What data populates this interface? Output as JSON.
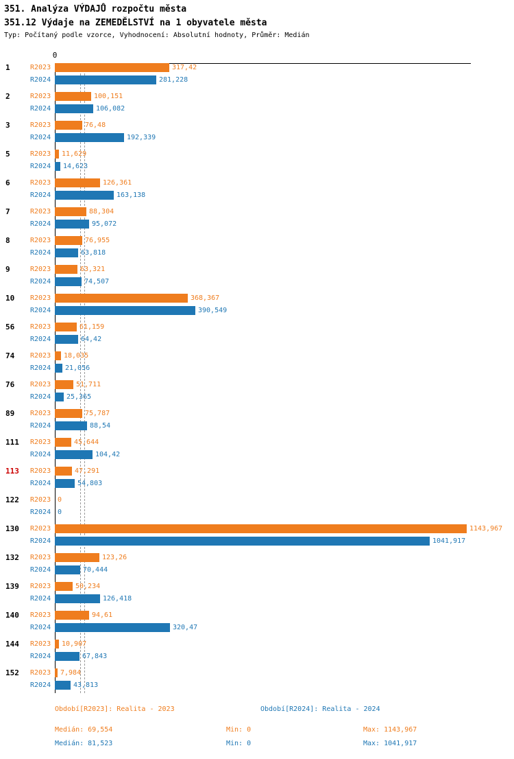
{
  "header": {
    "title_line1": "351. Analýza VÝDAJŮ rozpočtu města",
    "title_line2": "351.12 Výdaje na ZEMEDĚLSTVÍ na 1 obyvatele města",
    "type_line": "Typ: Počítaný podle vzorce, Vyhodnocení: Absolutní hodnoty, Průměr: Medián"
  },
  "chart_data": {
    "type": "bar",
    "orientation": "horizontal",
    "origin_tick_label": "0",
    "series": [
      "R2023",
      "R2024"
    ],
    "colors": {
      "r2023": "#ef7d1e",
      "r2024": "#1f77b4",
      "highlight_id": "#cc0000",
      "axis": "#000000",
      "median_line": "#9a9a9a"
    },
    "xlim": [
      0,
      1160
    ],
    "median_r2023": 69.554,
    "median_r2024": 81.523,
    "groups": [
      {
        "id": "1",
        "values": [
          "317,42",
          "281,228"
        ]
      },
      {
        "id": "2",
        "values": [
          "100,151",
          "106,082"
        ]
      },
      {
        "id": "3",
        "values": [
          "76,48",
          "192,339"
        ]
      },
      {
        "id": "5",
        "values": [
          "11,629",
          "14,623"
        ]
      },
      {
        "id": "6",
        "values": [
          "126,361",
          "163,138"
        ]
      },
      {
        "id": "7",
        "values": [
          "88,304",
          "95,072"
        ]
      },
      {
        "id": "8",
        "values": [
          "76,955",
          "63,818"
        ]
      },
      {
        "id": "9",
        "values": [
          "63,321",
          "74,507"
        ]
      },
      {
        "id": "10",
        "values": [
          "368,367",
          "390,549"
        ]
      },
      {
        "id": "56",
        "values": [
          "61,159",
          "64,42"
        ]
      },
      {
        "id": "74",
        "values": [
          "18,035",
          "21,056"
        ]
      },
      {
        "id": "76",
        "values": [
          "51,711",
          "25,365"
        ]
      },
      {
        "id": "89",
        "values": [
          "75,787",
          "88,54"
        ]
      },
      {
        "id": "111",
        "values": [
          "45,644",
          "104,42"
        ]
      },
      {
        "id": "113",
        "values": [
          "47,291",
          "54,803"
        ],
        "highlight": true
      },
      {
        "id": "122",
        "values": [
          "0",
          "0"
        ]
      },
      {
        "id": "130",
        "values": [
          "1143,967",
          "1041,917"
        ]
      },
      {
        "id": "132",
        "values": [
          "123,26",
          "70,444"
        ]
      },
      {
        "id": "139",
        "values": [
          "50,234",
          "126,418"
        ]
      },
      {
        "id": "140",
        "values": [
          "94,61",
          "320,47"
        ]
      },
      {
        "id": "144",
        "values": [
          "10,907",
          "67,843"
        ]
      },
      {
        "id": "152",
        "values": [
          "7,984",
          "43,813"
        ]
      }
    ]
  },
  "legend": {
    "r2023": "Období[R2023]: Realita - 2023",
    "r2024": "Období[R2024]: Realita - 2024"
  },
  "stats": {
    "r2023": {
      "median": "Medián: 69,554",
      "min": "Min: 0",
      "max": "Max: 1143,967"
    },
    "r2024": {
      "median": "Medián: 81,523",
      "min": "Min: 0",
      "max": "Max: 1041,917"
    }
  }
}
